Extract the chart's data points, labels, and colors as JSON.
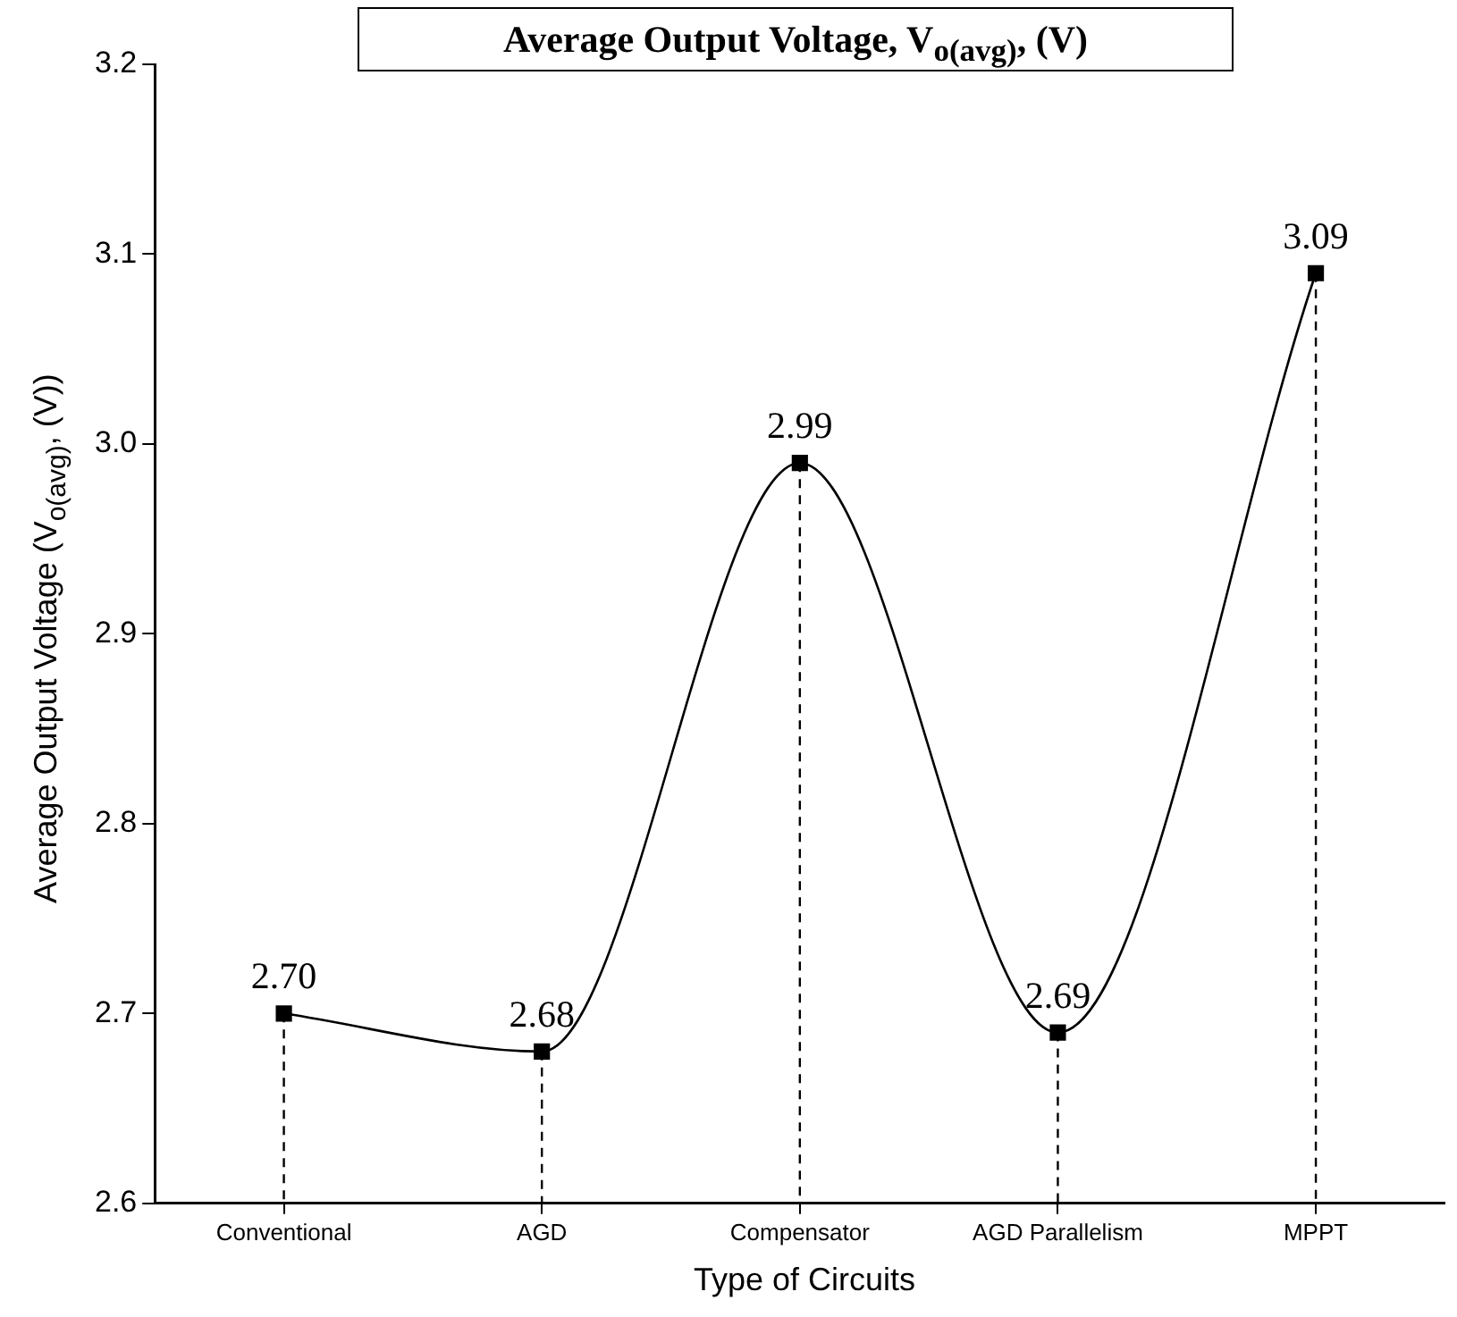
{
  "chart_data": {
    "type": "line",
    "title": "Average Output Voltage, V$_{o(avg)}$, (V)",
    "xlabel": "Type of Circuits",
    "ylabel": "Average Output Voltage (V$_{o(avg)}$, (V))",
    "categories": [
      "Conventional",
      "AGD",
      "Compensator",
      "AGD Parallelism",
      "MPPT"
    ],
    "series": [
      {
        "color": "#000000",
        "values": [
          2.7,
          2.68,
          2.99,
          2.69,
          3.09
        ],
        "value_labels": [
          "2.70",
          "2.68",
          "2.99",
          "2.69",
          "3.09"
        ]
      }
    ],
    "ylim": [
      2.6,
      3.2
    ],
    "yticks": [
      2.6,
      2.7,
      2.8,
      2.9,
      {
        "value": 3,
        "label": "3.0"
      },
      3.1,
      3.2
    ],
    "grid": "x",
    "legend": false,
    "marker": "square",
    "line_style": "solid"
  }
}
